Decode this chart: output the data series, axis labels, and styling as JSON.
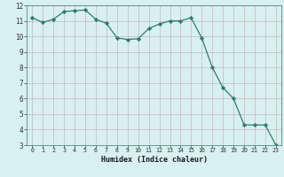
{
  "x": [
    0,
    1,
    2,
    3,
    4,
    5,
    6,
    7,
    8,
    9,
    10,
    11,
    12,
    13,
    14,
    15,
    16,
    17,
    18,
    19,
    20,
    21,
    22,
    23
  ],
  "y": [
    11.2,
    10.9,
    11.1,
    11.6,
    11.65,
    11.7,
    11.1,
    10.85,
    9.9,
    9.8,
    9.85,
    10.5,
    10.8,
    11.0,
    11.0,
    11.2,
    9.9,
    8.0,
    6.7,
    6.0,
    4.3,
    4.3,
    4.3,
    3.0
  ],
  "xlabel": "Humidex (Indice chaleur)",
  "ylim": [
    3,
    12
  ],
  "xlim": [
    -0.5,
    23.5
  ],
  "yticks": [
    3,
    4,
    5,
    6,
    7,
    8,
    9,
    10,
    11,
    12
  ],
  "xticks": [
    0,
    1,
    2,
    3,
    4,
    5,
    6,
    7,
    8,
    9,
    10,
    11,
    12,
    13,
    14,
    15,
    16,
    17,
    18,
    19,
    20,
    21,
    22,
    23
  ],
  "line_color": "#2e7d6e",
  "marker": "D",
  "marker_size": 2.2,
  "bg_color": "#d8f0f0",
  "grid_color_major": "#c8dede",
  "grid_color_minor": "#e0ecec"
}
